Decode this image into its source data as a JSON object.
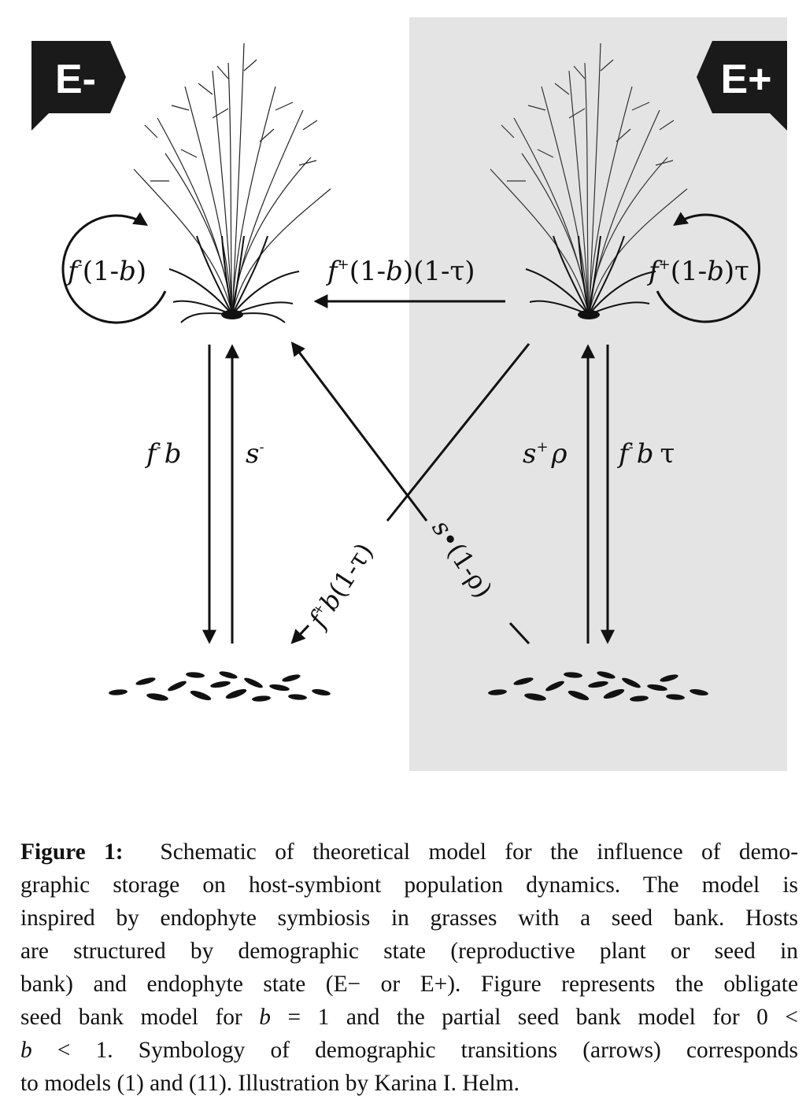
{
  "panels": {
    "left": {
      "tag": "E-"
    },
    "right": {
      "tag": "E+"
    }
  },
  "labels": {
    "loop_left": {
      "f": "f",
      "sup": "-",
      "rest_open": "(1-",
      "b": "b",
      "rest_close": ")"
    },
    "loop_right": {
      "f": "f",
      "sup": "+",
      "rest_open": "(1-",
      "b": "b",
      "rest_close": ")τ"
    },
    "horizontal": {
      "f": "f",
      "sup": "+",
      "rest_open": "(1-",
      "b": "b",
      "rest_close": ")(1-τ)"
    },
    "left_down": {
      "f": "f",
      "sup": "-",
      "b": "b"
    },
    "left_up": {
      "s": "s",
      "sup": "-"
    },
    "right_up": {
      "s": "s",
      "sup": "+",
      "rho": "ρ"
    },
    "right_down": {
      "f": "f",
      "sup": "-",
      "b": "b",
      "tau": "τ"
    },
    "diag_down": {
      "f": "f",
      "sup": "+",
      "b": "b",
      "rest": "(1-τ)"
    },
    "diag_up": {
      "s": "s",
      "dot": "•",
      "rest": "(1-ρ)"
    }
  },
  "caption": {
    "label": "Figure 1:",
    "lines": [
      "Schematic of theoretical model for the influence of demo-",
      "graphic storage on host-symbiont population dynamics. The model is",
      "inspired by endophyte symbiosis in grasses with a seed bank. Hosts",
      "are structured by demographic state (reproductive plant or seed in",
      "bank) and endophyte state (E− or E+). Figure represents the obligate"
    ],
    "line6_a": "seed bank model for ",
    "line6_b": "b",
    "line6_c": " = 1 and the partial seed bank model for 0 <",
    "line7_a": "b",
    "line7_b": " < 1. Symbology of demographic transitions (arrows) corresponds",
    "line8": "to models (1) and (11). Illustration by Karina I. Helm."
  },
  "colors": {
    "right_panel_bg": "#e4e4e4",
    "ink": "#111111",
    "tag_bg": "#1a1a1a"
  }
}
